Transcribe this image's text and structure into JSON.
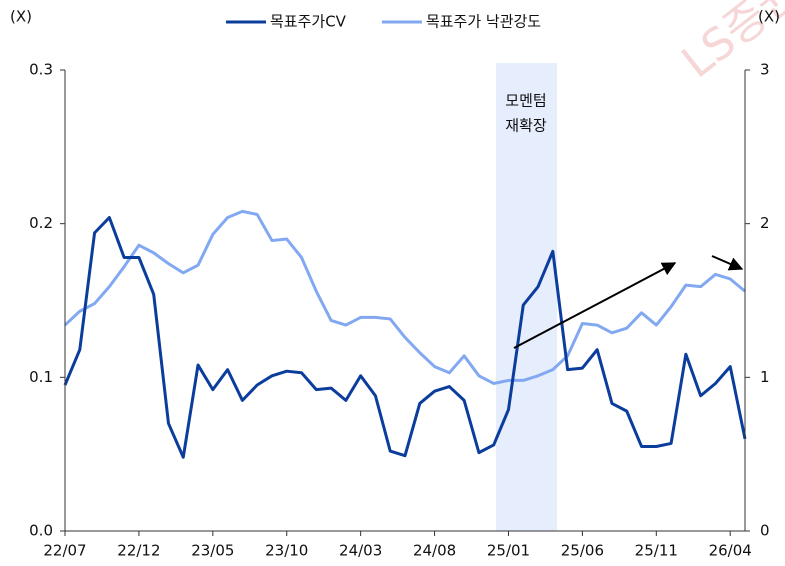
{
  "chart_data": {
    "type": "line",
    "y_label": "(X)",
    "y2_label": "(X)",
    "watermark": "LS증권",
    "annotation": [
      "모멘텀",
      "재확장"
    ],
    "categories": [
      "22/07",
      null,
      null,
      null,
      null,
      "22/12",
      null,
      null,
      null,
      null,
      "23/05",
      null,
      null,
      null,
      null,
      "23/10",
      null,
      null,
      null,
      null,
      "24/03",
      null,
      null,
      null,
      null,
      "24/08",
      null,
      null,
      null,
      null,
      "25/01",
      null,
      null,
      null,
      null,
      "25/06",
      null,
      null,
      null,
      null,
      "25/11",
      null,
      null,
      null,
      null,
      "26/04",
      null
    ],
    "series": [
      {
        "name": "목표주가CV",
        "color": "#0b3d9c",
        "axis": "y",
        "values": [
          0.095,
          0.118,
          0.194,
          0.204,
          0.178,
          0.178,
          0.154,
          0.07,
          0.048,
          0.108,
          0.092,
          0.105,
          0.085,
          0.095,
          0.101,
          0.104,
          0.103,
          0.092,
          0.093,
          0.085,
          0.101,
          0.088,
          0.052,
          0.049,
          0.083,
          0.091,
          0.094,
          0.085,
          0.051,
          0.056,
          0.079,
          0.147,
          0.159,
          0.182,
          0.105,
          0.106,
          0.118,
          0.083,
          0.078,
          0.055,
          0.055,
          0.057,
          0.115,
          0.088,
          0.096,
          0.107,
          0.06
        ]
      },
      {
        "name": "목표주가 낙관강도",
        "color": "#82a8f2",
        "axis": "y2",
        "values": [
          1.34,
          1.43,
          1.48,
          1.59,
          1.72,
          1.86,
          1.81,
          1.74,
          1.68,
          1.73,
          1.93,
          2.04,
          2.08,
          2.06,
          1.89,
          1.9,
          1.78,
          1.56,
          1.37,
          1.34,
          1.39,
          1.39,
          1.38,
          1.26,
          1.16,
          1.07,
          1.03,
          1.14,
          1.01,
          0.96,
          0.98,
          0.98,
          1.01,
          1.05,
          1.14,
          1.35,
          1.34,
          1.29,
          1.32,
          1.42,
          1.34,
          1.46,
          1.6,
          1.59,
          1.67,
          1.64,
          1.56
        ]
      }
    ],
    "ylim": [
      0,
      0.3
    ],
    "yticks": [
      {
        "value": 0,
        "label": "0.0"
      },
      0.1,
      0.2,
      0.3
    ],
    "y2lim": [
      0,
      3
    ],
    "y2ticks": [
      0,
      1,
      2,
      3
    ],
    "legend": "top"
  }
}
